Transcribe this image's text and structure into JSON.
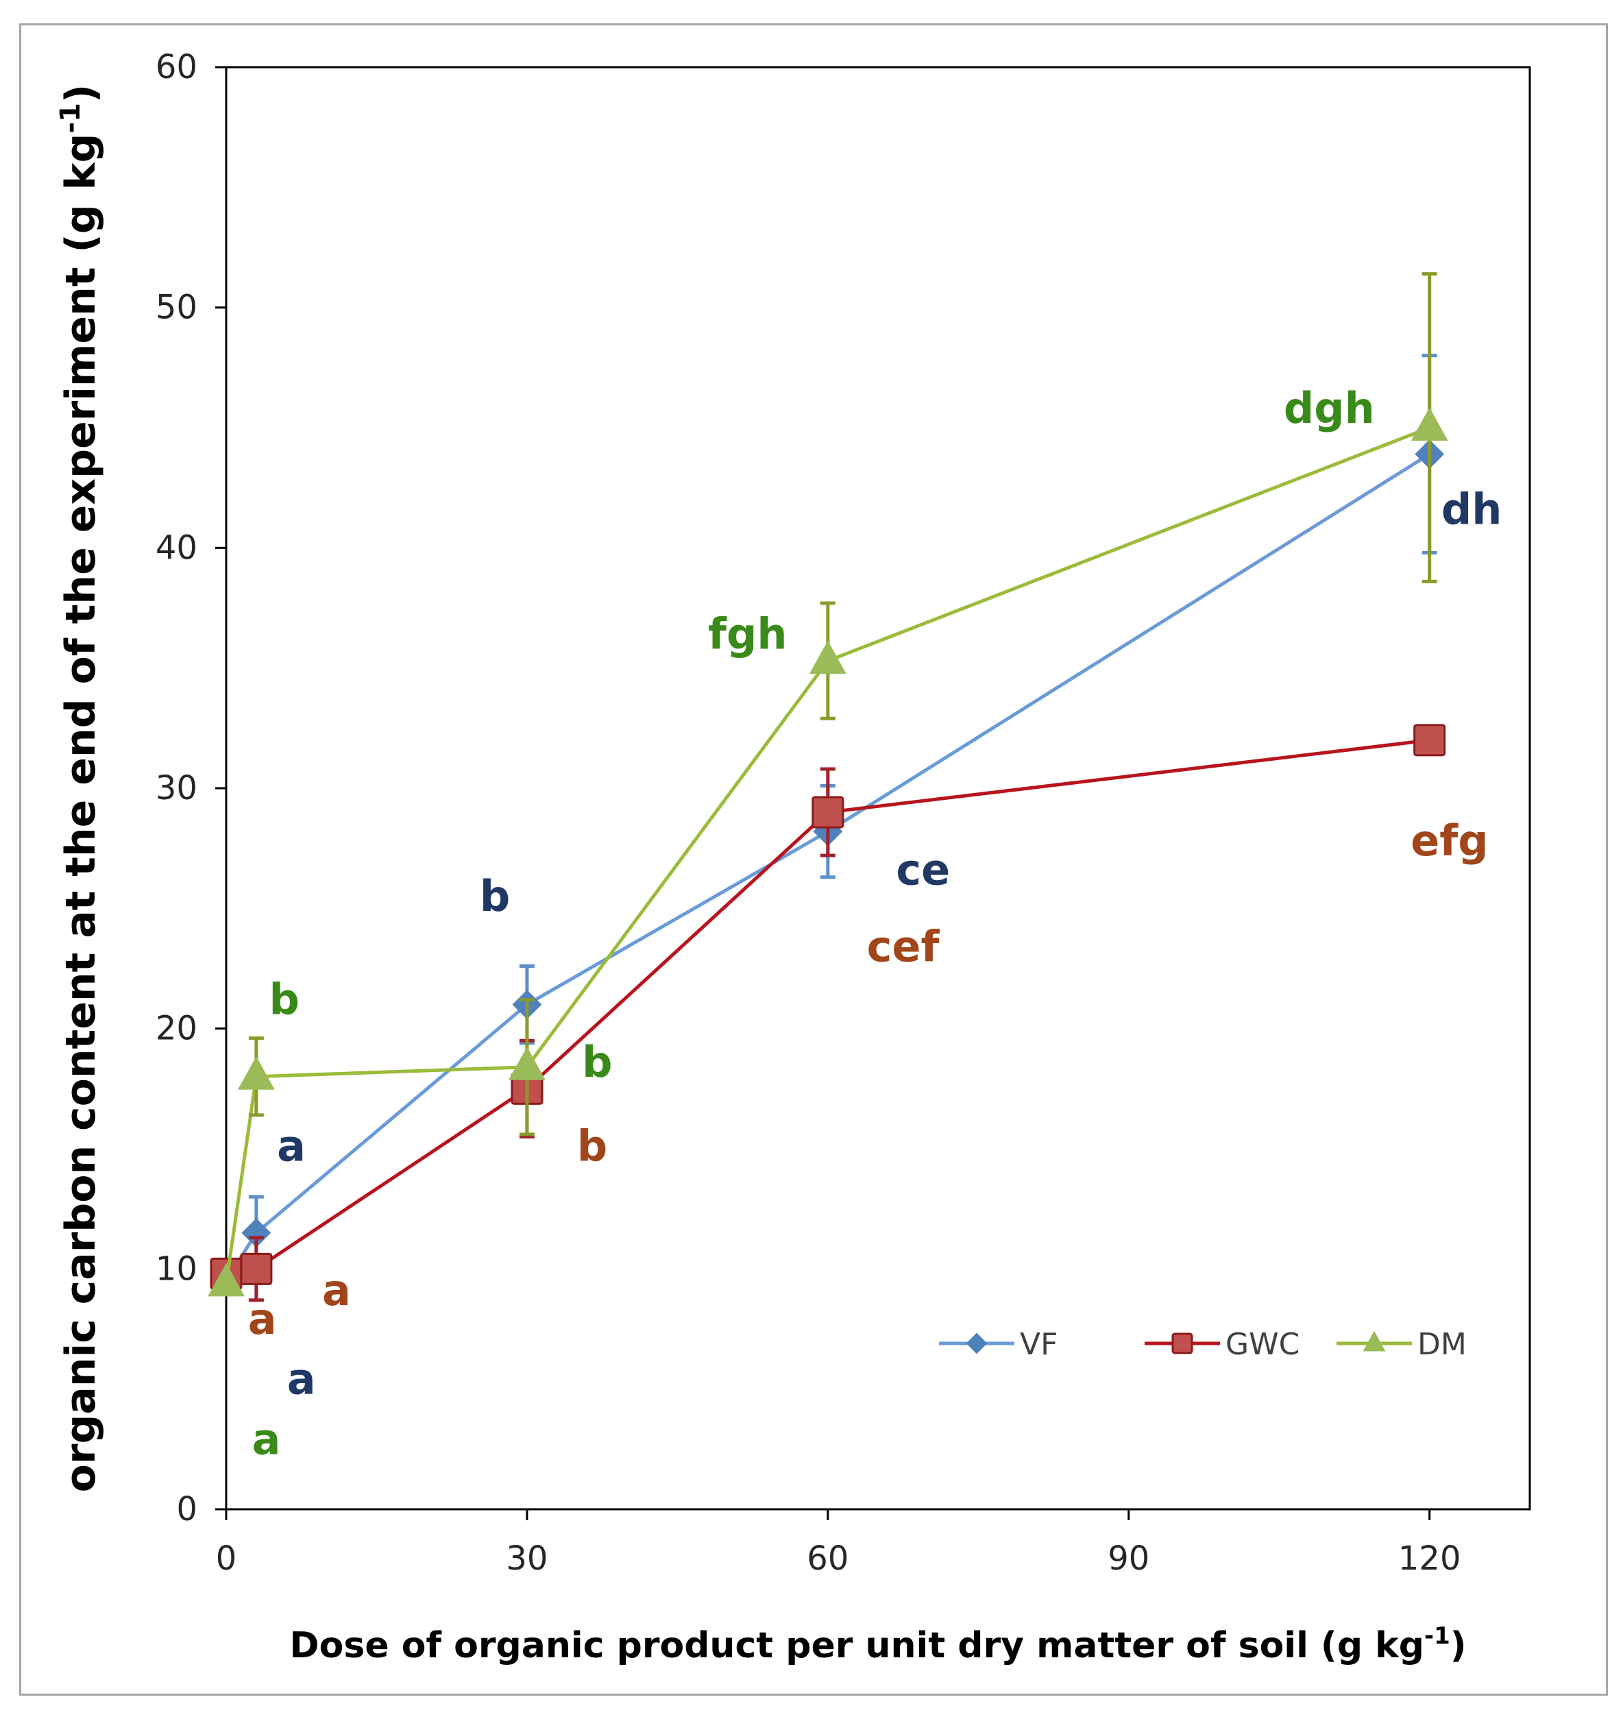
{
  "chart_data": {
    "type": "line",
    "xlabel": "Dose of organic product per unit dry matter of soil (g  kg",
    "xlabel_sup": "-1",
    "xlabel_tail": ")",
    "ylabel": "organic carbon content at the end of the experiment (g  kg",
    "ylabel_sup": "-1",
    "ylabel_tail": ")",
    "xlim": [
      0,
      130
    ],
    "ylim": [
      0,
      60
    ],
    "xticks": [
      0,
      30,
      60,
      90,
      120
    ],
    "yticks": [
      0,
      10,
      20,
      30,
      40,
      50,
      60
    ],
    "legend_position": "lower-right",
    "series": [
      {
        "name": "VF",
        "color": "#4f81bd",
        "marker": "diamond",
        "x": [
          0,
          3,
          30,
          60,
          120
        ],
        "y": [
          9.5,
          11.5,
          21.0,
          28.2,
          43.9
        ],
        "err": [
          0.4,
          1.5,
          1.6,
          1.9,
          4.1
        ],
        "sig_color": "#1f3864",
        "sig_labels": [
          {
            "text": "a",
            "x": 7.5,
            "y": 4.8
          },
          {
            "text": "a",
            "x": 6.5,
            "y": 14.5
          },
          {
            "text": "b",
            "x": 26.8,
            "y": 24.9
          },
          {
            "text": "ce",
            "x": 69.5,
            "y": 26.0
          },
          {
            "text": "dh",
            "x": 124.2,
            "y": 41.0
          }
        ]
      },
      {
        "name": "GWC",
        "color": "#c0504d",
        "marker": "square",
        "x": [
          0,
          3,
          30,
          60,
          120
        ],
        "y": [
          9.8,
          10.0,
          17.5,
          29.0,
          32.0
        ],
        "err": [
          0.4,
          1.3,
          2.0,
          1.8,
          0.5
        ],
        "sig_color": "#a0461a",
        "sig_labels": [
          {
            "text": "a",
            "x": 3.6,
            "y": 7.3
          },
          {
            "text": "a",
            "x": 11.0,
            "y": 8.5
          },
          {
            "text": "b",
            "x": 36.5,
            "y": 14.5
          },
          {
            "text": "cef",
            "x": 67.5,
            "y": 22.8
          },
          {
            "text": "efg",
            "x": 122.0,
            "y": 27.2
          }
        ]
      },
      {
        "name": "DM",
        "color": "#9bbb59",
        "marker": "triangle",
        "x": [
          0,
          3,
          30,
          60,
          120
        ],
        "y": [
          9.4,
          18.0,
          18.4,
          35.3,
          45.0
        ],
        "err": [
          0.3,
          1.6,
          2.8,
          2.4,
          6.4
        ],
        "sig_color": "#3a8a1a",
        "sig_labels": [
          {
            "text": "a",
            "x": 4.0,
            "y": 2.3
          },
          {
            "text": "b",
            "x": 5.8,
            "y": 20.6
          },
          {
            "text": "b",
            "x": 37.0,
            "y": 18.0
          },
          {
            "text": "fgh",
            "x": 52.0,
            "y": 35.8
          },
          {
            "text": "dgh",
            "x": 110.0,
            "y": 45.2
          }
        ]
      }
    ]
  }
}
